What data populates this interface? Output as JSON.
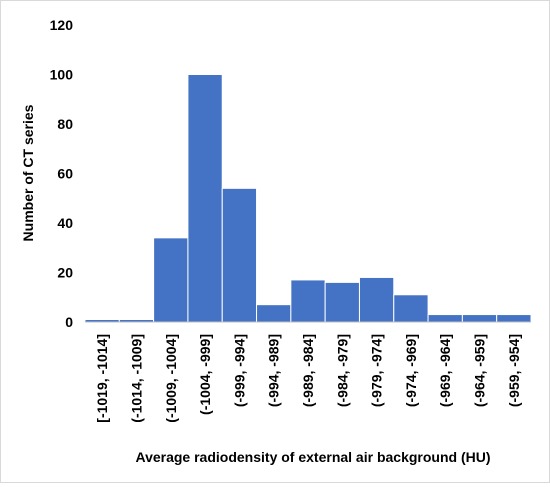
{
  "chart_data": {
    "type": "bar",
    "title": "",
    "xlabel": "Average radiodensity of external air background (HU)",
    "ylabel": "Number of CT series",
    "categories": [
      "[-1019, -1014]",
      "(-1014, -1009]",
      "(-1009, -1004]",
      "(-1004, -999]",
      "(-999, -994]",
      "(-994, -989]",
      "(-989, -984]",
      "(-984, -979]",
      "(-979, -974]",
      "(-974, -969]",
      "(-969, -964]",
      "(-964, -959]",
      "(-959, -954]"
    ],
    "values": [
      1,
      1,
      34,
      100,
      54,
      7,
      17,
      16,
      18,
      11,
      3,
      3,
      3
    ],
    "ylim": [
      0,
      120
    ],
    "yticks": [
      0,
      20,
      40,
      60,
      80,
      100,
      120
    ],
    "grid": false,
    "legend": "none",
    "bar_color": "#4472C4",
    "bar_edge_color": "#ffffff"
  }
}
